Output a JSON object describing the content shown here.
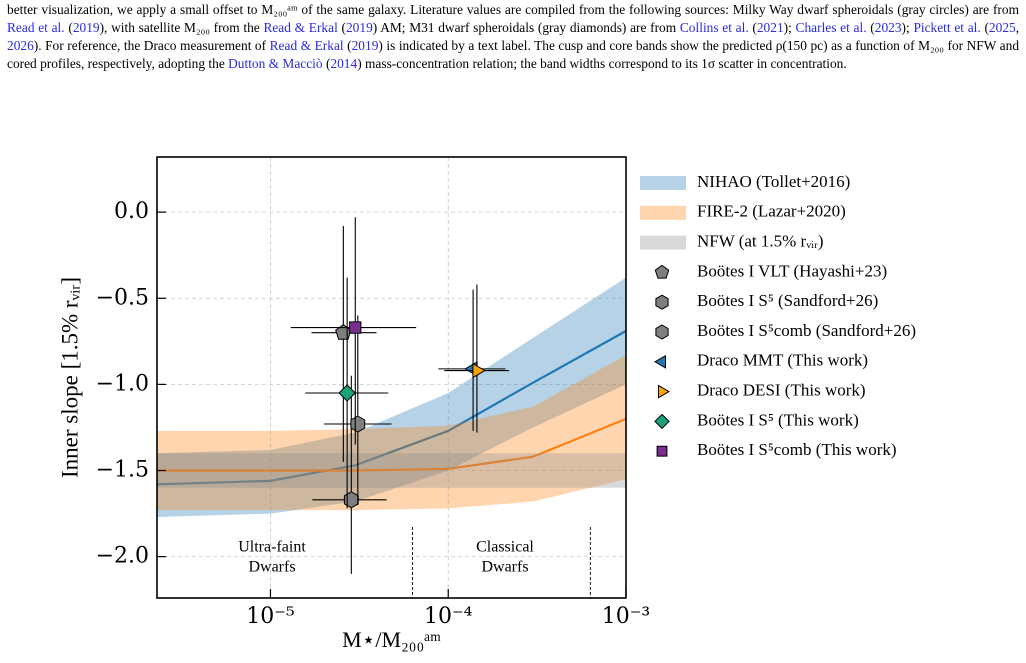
{
  "caption": [
    "better visualization, we apply a small offset to M₂₀₀ᵃᵐ of the same galaxy. Literature values are compiled from the following sources: Milky Way dwarf spheroidals (gray circles) are from ",
    {
      "text": "Read et al.",
      "link": true
    },
    " (",
    {
      "text": "2019",
      "link": true
    },
    "), with satellite M₂₀₀ from the ",
    {
      "text": "Read & Erkal",
      "link": true
    },
    " (",
    {
      "text": "2019",
      "link": true
    },
    ") AM; M31 dwarf spheroidals (gray diamonds) are from ",
    {
      "text": "Collins et al.",
      "link": true
    },
    " (",
    {
      "text": "2021",
      "link": true
    },
    "); ",
    {
      "text": "Charles et al.",
      "link": true
    },
    " (",
    {
      "text": "2023",
      "link": true
    },
    "); ",
    {
      "text": "Pickett et al.",
      "link": true
    },
    " (",
    {
      "text": "2025",
      "link": true
    },
    ", ",
    {
      "text": "2026",
      "link": true
    },
    "). For reference, the Draco measurement of ",
    {
      "text": "Read & Erkal",
      "link": true
    },
    " (",
    {
      "text": "2019",
      "link": true
    },
    ") is indicated by a text label. The cusp and core bands show the predicted ρ(150 pc) as a function of M₂₀₀ for NFW and cored profiles, respectively, adopting the ",
    {
      "text": "Dutton & Macciò",
      "link": true
    },
    " (",
    {
      "text": "2014",
      "link": true
    },
    ") mass-concentration relation; the band widths correspond to its 1σ scatter in concentration."
  ],
  "chart_data": {
    "type": "scatter",
    "xlabel": "M⋆/M₂₀₀ᵃᵐ",
    "ylabel": "Inner slope [1.5% rᵥᵢᵣ]",
    "xlog": true,
    "grid": true,
    "xlim": [
      2.3e-06,
      0.001
    ],
    "xticks": [
      {
        "value": 1e-05,
        "label": "10⁻⁵"
      },
      {
        "value": 0.0001,
        "label": "10⁻⁴"
      },
      {
        "value": 0.001,
        "label": "10⁻³"
      }
    ],
    "ylim": [
      -2.24,
      0.32
    ],
    "yticks": [
      {
        "value": 0,
        "label": "0.0"
      },
      {
        "value": -0.5,
        "label": "−0.5"
      },
      {
        "value": -1,
        "label": "−1.0"
      },
      {
        "value": -1.5,
        "label": "−1.5"
      },
      {
        "value": -2,
        "label": "−2.0"
      }
    ],
    "boundaries": [
      6.3e-05,
      0.00063
    ],
    "annotations": [
      [
        "Ultra-faint",
        "Dwarfs"
      ],
      [
        "Classical",
        "Dwarfs"
      ]
    ],
    "series": [
      {
        "name": "NIHAO (Tollet+2016)",
        "kind": "band",
        "color": "#1f77b4",
        "x": [
          2.3e-06,
          1e-05,
          3e-05,
          0.0001,
          0.0003,
          0.001
        ],
        "values": [
          -1.58,
          -1.56,
          -1.47,
          -1.27,
          -0.99,
          -0.69
        ],
        "low": [
          -1.77,
          -1.75,
          -1.68,
          -1.5,
          -1.25,
          -1.0
        ],
        "high": [
          -1.4,
          -1.38,
          -1.28,
          -1.05,
          -0.73,
          -0.38
        ]
      },
      {
        "name": "FIRE-2 (Lazar+2020)",
        "kind": "band",
        "color": "#ff7f0e",
        "x": [
          2.3e-06,
          1e-05,
          3e-05,
          0.0001,
          0.0003,
          0.001
        ],
        "values": [
          -1.5,
          -1.5,
          -1.5,
          -1.49,
          -1.42,
          -1.2
        ],
        "low": [
          -1.73,
          -1.73,
          -1.73,
          -1.72,
          -1.68,
          -1.55
        ],
        "high": [
          -1.27,
          -1.27,
          -1.26,
          -1.24,
          -1.13,
          -0.83
        ]
      },
      {
        "name": "NFW (at 1.5% rᵥᵢᵣ)",
        "kind": "band",
        "color": "#8c8c8c",
        "x": [
          2.3e-06,
          0.001
        ],
        "low": [
          -1.6,
          -1.6
        ],
        "high": [
          -1.4,
          -1.4
        ]
      },
      {
        "name": "Boötes I VLT (Hayashi+23)",
        "kind": "point",
        "marker": "pentagon",
        "color": "#7f7f7f",
        "x": [
          2.57e-05
        ],
        "values": [
          -0.7
        ],
        "xrange": [
          [
            1.7e-05,
            3.95e-05
          ]
        ],
        "yrange": [
          [
            -0.08,
            -1.45
          ]
        ]
      },
      {
        "name": "Boötes I S⁵ (Sandford+26)",
        "kind": "point",
        "marker": "hexagon",
        "color": "#7f7f7f",
        "x": [
          2.85e-05
        ],
        "values": [
          -1.67
        ],
        "xrange": [
          [
            1.72e-05,
            4.5e-05
          ]
        ],
        "yrange": [
          [
            -0.95,
            -2.1
          ]
        ]
      },
      {
        "name": "Boötes I S⁵comb (Sandford+26)",
        "kind": "point",
        "marker": "hexagon",
        "color": "#7f7f7f",
        "x": [
          3.1e-05
        ],
        "values": [
          -1.23
        ],
        "xrange": [
          [
            2e-05,
            4.8e-05
          ]
        ],
        "yrange": [
          [
            -0.6,
            -1.7
          ]
        ]
      },
      {
        "name": "Draco MMT (This work)",
        "kind": "point",
        "marker": "triangle-left",
        "color": "#1f77b4",
        "x": [
          0.000138
        ],
        "values": [
          -0.91
        ],
        "xrange": [
          [
            8.8e-05,
            0.00021
          ]
        ],
        "yrange": [
          [
            -0.45,
            -1.27
          ]
        ]
      },
      {
        "name": "Draco DESI (This work)",
        "kind": "point",
        "marker": "triangle-right",
        "color": "#f5a300",
        "x": [
          0.000145
        ],
        "values": [
          -0.92
        ],
        "xrange": [
          [
            9.5e-05,
            0.00022
          ]
        ],
        "yrange": [
          [
            -0.42,
            -1.28
          ]
        ]
      },
      {
        "name": "Boötes I S⁵ (This work)",
        "kind": "point",
        "marker": "diamond",
        "color": "#1aa37a",
        "x": [
          2.7e-05
        ],
        "values": [
          -1.05
        ],
        "xrange": [
          [
            1.57e-05,
            4.6e-05
          ]
        ],
        "yrange": [
          [
            -0.38,
            -1.72
          ]
        ]
      },
      {
        "name": "Boötes I S⁵comb (This work)",
        "kind": "point",
        "marker": "square",
        "color": "#7b2d8e",
        "x": [
          3e-05
        ],
        "values": [
          -0.67
        ],
        "xrange": [
          [
            1.3e-05,
            6.6e-05
          ]
        ],
        "yrange": [
          [
            -0.03,
            -1.35
          ]
        ]
      }
    ]
  }
}
